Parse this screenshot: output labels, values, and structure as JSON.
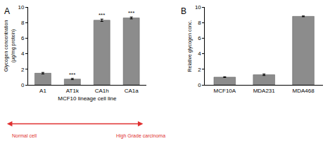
{
  "chart_data": [
    {
      "type": "bar",
      "panel": "A",
      "categories": [
        "A1",
        "AT1k",
        "CA1h",
        "CA1a"
      ],
      "values": [
        1.5,
        0.75,
        8.3,
        8.6
      ],
      "errors": [
        0.1,
        0.08,
        0.15,
        0.12
      ],
      "significance": [
        null,
        "***",
        "***",
        "***"
      ],
      "color": "#8c8c8c",
      "x_label": "MCF10 lineage cell line",
      "y_label": "Glycogen concentration (μg/mg protein)",
      "ylim": [
        0,
        10
      ],
      "yticks": [
        0,
        2,
        4,
        6,
        8,
        10
      ],
      "annotations": [
        "Normal cell",
        "High Grade carcinoma"
      ]
    },
    {
      "type": "bar",
      "panel": "B",
      "categories": [
        "MCF10A",
        "MDA231",
        "MDA468"
      ],
      "values": [
        1.0,
        1.3,
        8.8
      ],
      "errors": [
        0.05,
        0.1,
        0.05
      ],
      "color": "#8c8c8c",
      "y_label": "Relative glycogen conc.",
      "ylim": [
        0,
        10
      ],
      "yticks": [
        0,
        2,
        4,
        6,
        8,
        10
      ]
    }
  ]
}
